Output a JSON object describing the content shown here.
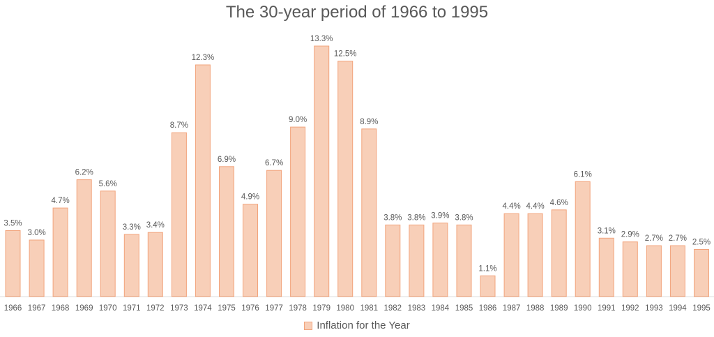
{
  "chart_data": {
    "type": "bar",
    "title": "The 30-year period of 1966 to 1995",
    "categories": [
      "1966",
      "1967",
      "1968",
      "1969",
      "1970",
      "1971",
      "1972",
      "1973",
      "1974",
      "1975",
      "1976",
      "1977",
      "1978",
      "1979",
      "1980",
      "1981",
      "1982",
      "1983",
      "1984",
      "1985",
      "1986",
      "1987",
      "1988",
      "1989",
      "1990",
      "1991",
      "1992",
      "1993",
      "1994",
      "1995"
    ],
    "series": [
      {
        "name": "Inflation for the Year",
        "values": [
          3.5,
          3.0,
          4.7,
          6.2,
          5.6,
          3.3,
          3.4,
          8.7,
          12.3,
          6.9,
          4.9,
          6.7,
          9.0,
          13.3,
          12.5,
          8.9,
          3.8,
          3.8,
          3.9,
          3.8,
          1.1,
          4.4,
          4.4,
          4.6,
          6.1,
          3.1,
          2.9,
          2.7,
          2.7,
          2.5
        ],
        "labels": [
          "3.5%",
          "3.0%",
          "4.7%",
          "6.2%",
          "5.6%",
          "3.3%",
          "3.4%",
          "8.7%",
          "12.3%",
          "6.9%",
          "4.9%",
          "6.7%",
          "9.0%",
          "13.3%",
          "12.5%",
          "8.9%",
          "3.8%",
          "3.8%",
          "3.9%",
          "3.8%",
          "1.1%",
          "4.4%",
          "4.4%",
          "4.6%",
          "6.1%",
          "3.1%",
          "2.9%",
          "2.7%",
          "2.7%",
          "2.5%"
        ]
      }
    ],
    "xlabel": "",
    "ylabel": "",
    "ylim": [
      0,
      13.3
    ],
    "y_axis_visible": false,
    "grid": false,
    "data_labels": true,
    "legend": "bottom",
    "colors": {
      "bar_fill": "#f8cfb8",
      "bar_stroke": "#f2a47c",
      "axis": "#d9d9d9",
      "text": "#595959"
    }
  }
}
